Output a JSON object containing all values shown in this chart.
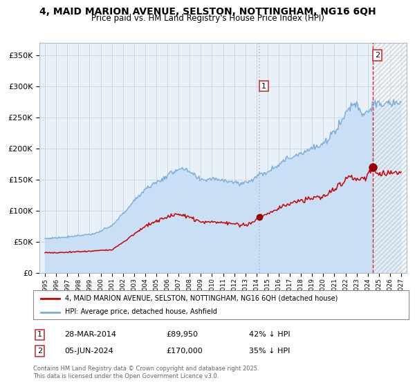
{
  "title_line1": "4, MAID MARION AVENUE, SELSTON, NOTTINGHAM, NG16 6QH",
  "title_line2": "Price paid vs. HM Land Registry's House Price Index (HPI)",
  "legend_entry1": "4, MAID MARION AVENUE, SELSTON, NOTTINGHAM, NG16 6QH (detached house)",
  "legend_entry2": "HPI: Average price, detached house, Ashfield",
  "transaction1_label": "1",
  "transaction1_date_label": "28-MAR-2014",
  "transaction1_price_label": "£89,950",
  "transaction1_hpi_label": "42% ↓ HPI",
  "transaction1_date_num": 2014.25,
  "transaction1_price": 89950,
  "transaction2_label": "2",
  "transaction2_date_label": "05-JUN-2024",
  "transaction2_price_label": "£170,000",
  "transaction2_hpi_label": "35% ↓ HPI",
  "transaction2_date_num": 2024.43,
  "transaction2_price": 170000,
  "red_line_color": "#cc0000",
  "blue_line_color": "#7aabdc",
  "blue_fill_color": "#c8dff5",
  "background_color": "#e8f0f8",
  "grid_color": "#c0ccd8",
  "vline1_color": "#bbbbcc",
  "vline2_color": "#dd2222",
  "marker_color": "#990000",
  "ylim_min": 0,
  "ylim_max": 370000,
  "ytick_values": [
    0,
    50000,
    100000,
    150000,
    200000,
    250000,
    300000,
    350000
  ],
  "ytick_labels": [
    "£0",
    "£50K",
    "£100K",
    "£150K",
    "£200K",
    "£250K",
    "£300K",
    "£350K"
  ],
  "xlim_min": 1994.5,
  "xlim_max": 2027.5,
  "footer_text": "Contains HM Land Registry data © Crown copyright and database right 2025.\nThis data is licensed under the Open Government Licence v3.0.",
  "hatch_region_start": 2024.43,
  "hatch_color": "#ccccdd"
}
